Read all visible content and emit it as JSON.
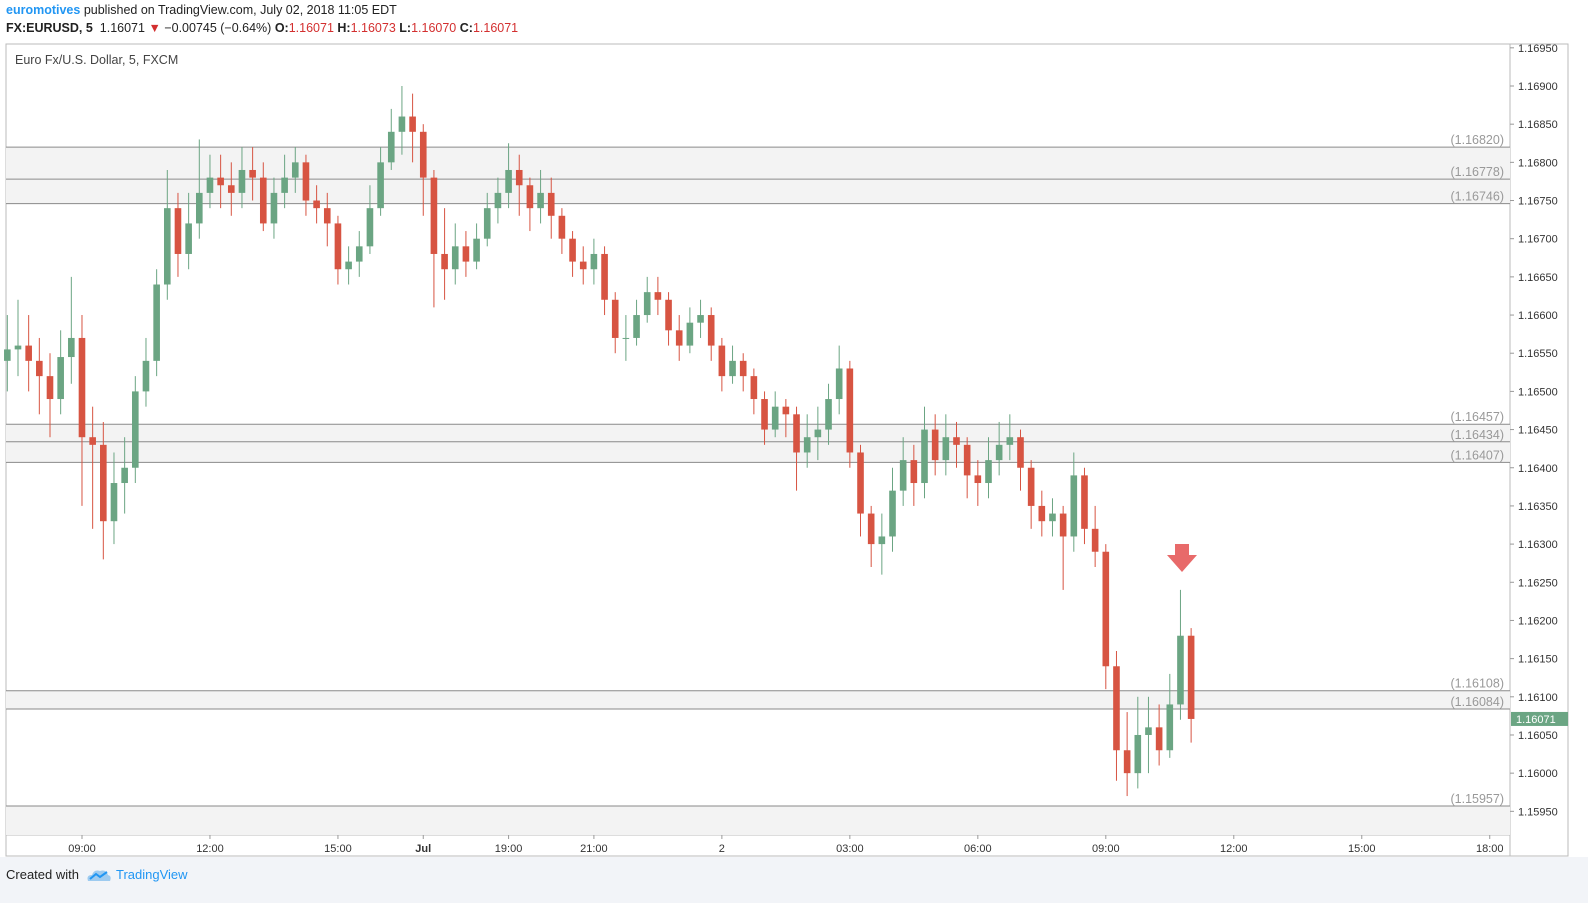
{
  "header": {
    "user": "euromotives",
    "published": "published on TradingView.com, July 02, 2018 11:05 EDT",
    "symbol": "FX:EURUSD, 5",
    "last": "1.16071",
    "change": "−0.00745 (−0.64%)",
    "o_label": "O:",
    "o": "1.16071",
    "h_label": "H:",
    "h": "1.16073",
    "l_label": "L:",
    "l": "1.16070",
    "c_label": "C:",
    "c": "1.16071"
  },
  "footer": {
    "created": "Created with",
    "brand": "TradingView"
  },
  "chart_data": {
    "type": "candlestick",
    "title": "Euro Fx/U.S. Dollar, 5, FXCM",
    "up_color": "#6ba583",
    "down_color": "#d75442",
    "open": [
      1.1654,
      1.16555,
      1.1656,
      1.1654,
      1.1652,
      1.1649,
      1.16545,
      1.1657,
      1.1644,
      1.1643,
      1.1633,
      1.1638,
      1.164,
      1.165,
      1.1654,
      1.1664,
      1.1674,
      1.1668,
      1.1672,
      1.1676,
      1.1678,
      1.1677,
      1.1676,
      1.1679,
      1.1678,
      1.1672,
      1.1676,
      1.1678,
      1.168,
      1.1675,
      1.1674,
      1.1672,
      1.1666,
      1.1667,
      1.1669,
      1.1674,
      1.168,
      1.1684,
      1.1686,
      1.1684,
      1.1678,
      1.1668,
      1.1666,
      1.1669,
      1.1667,
      1.167,
      1.1674,
      1.1676,
      1.1679,
      1.1677,
      1.1674,
      1.1676,
      1.1673,
      1.167,
      1.1667,
      1.1666,
      1.1668,
      1.1662,
      1.1657,
      1.1657,
      1.166,
      1.1663,
      1.1662,
      1.1658,
      1.1656,
      1.1659,
      1.166,
      1.1656,
      1.1652,
      1.1654,
      1.1652,
      1.1649,
      1.1645,
      1.1648,
      1.1647,
      1.1642,
      1.1644,
      1.1645,
      1.1649,
      1.1653,
      1.1642,
      1.1634,
      1.163,
      1.1631,
      1.1637,
      1.1641,
      1.1638,
      1.1645,
      1.1641,
      1.1644,
      1.1643,
      1.1639,
      1.1638,
      1.1641,
      1.1643,
      1.1644,
      1.164,
      1.1635,
      1.1633,
      1.1634,
      1.1631,
      1.1639,
      1.1632,
      1.1629,
      1.1614,
      1.1603,
      1.16,
      1.1605,
      1.1606,
      1.1603,
      1.1609,
      1.1618
    ],
    "high": [
      1.166,
      1.1662,
      1.166,
      1.1657,
      1.1655,
      1.1658,
      1.1665,
      1.166,
      1.1648,
      1.1646,
      1.1642,
      1.1644,
      1.1652,
      1.1657,
      1.1666,
      1.1679,
      1.1676,
      1.1676,
      1.1683,
      1.1681,
      1.1681,
      1.168,
      1.1682,
      1.1682,
      1.168,
      1.1678,
      1.1681,
      1.1682,
      1.1681,
      1.1677,
      1.1676,
      1.1673,
      1.1669,
      1.1671,
      1.1677,
      1.1682,
      1.1687,
      1.169,
      1.1689,
      1.1685,
      1.1679,
      1.1674,
      1.1672,
      1.1671,
      1.1672,
      1.1676,
      1.1678,
      1.16825,
      1.1681,
      1.1678,
      1.1679,
      1.1678,
      1.1674,
      1.1671,
      1.1669,
      1.167,
      1.1669,
      1.1663,
      1.166,
      1.1662,
      1.1665,
      1.1665,
      1.1663,
      1.166,
      1.1661,
      1.1662,
      1.1661,
      1.1657,
      1.1656,
      1.1655,
      1.1653,
      1.165,
      1.165,
      1.1649,
      1.1648,
      1.1647,
      1.1648,
      1.1651,
      1.1656,
      1.1654,
      1.1643,
      1.1635,
      1.1634,
      1.164,
      1.1644,
      1.1643,
      1.1648,
      1.1647,
      1.1647,
      1.1646,
      1.1644,
      1.1641,
      1.1644,
      1.1646,
      1.1647,
      1.1645,
      1.1641,
      1.1637,
      1.1636,
      1.1635,
      1.1642,
      1.164,
      1.1635,
      1.163,
      1.1616,
      1.1608,
      1.161,
      1.161,
      1.1609,
      1.1613,
      1.1624,
      1.1619
    ],
    "low": [
      1.165,
      1.1652,
      1.165,
      1.1647,
      1.1644,
      1.1647,
      1.1651,
      1.1635,
      1.1632,
      1.1628,
      1.163,
      1.1634,
      1.1638,
      1.1648,
      1.1652,
      1.1662,
      1.1665,
      1.1666,
      1.167,
      1.1674,
      1.1674,
      1.1673,
      1.1674,
      1.1675,
      1.1671,
      1.167,
      1.1674,
      1.1676,
      1.1673,
      1.1672,
      1.1669,
      1.1664,
      1.1664,
      1.1665,
      1.1668,
      1.1673,
      1.1679,
      1.1681,
      1.168,
      1.1673,
      1.1661,
      1.1662,
      1.1664,
      1.1665,
      1.1666,
      1.1669,
      1.1672,
      1.1674,
      1.1673,
      1.1671,
      1.1672,
      1.167,
      1.1668,
      1.1665,
      1.1664,
      1.1664,
      1.166,
      1.1655,
      1.1654,
      1.1656,
      1.1659,
      1.166,
      1.1656,
      1.1654,
      1.1655,
      1.1657,
      1.1654,
      1.165,
      1.1651,
      1.165,
      1.1647,
      1.1643,
      1.1644,
      1.1644,
      1.1637,
      1.164,
      1.1641,
      1.1643,
      1.1647,
      1.164,
      1.1631,
      1.1627,
      1.1626,
      1.1629,
      1.1635,
      1.1635,
      1.1636,
      1.1639,
      1.1639,
      1.164,
      1.1636,
      1.1635,
      1.1636,
      1.1639,
      1.1641,
      1.1637,
      1.1632,
      1.1631,
      1.1631,
      1.1624,
      1.1629,
      1.163,
      1.1627,
      1.1611,
      1.1599,
      1.1597,
      1.1598,
      1.16,
      1.1601,
      1.1602,
      1.1607,
      1.1604
    ],
    "close": [
      1.16555,
      1.1656,
      1.1654,
      1.1652,
      1.1649,
      1.16545,
      1.1657,
      1.1644,
      1.1643,
      1.1633,
      1.1638,
      1.164,
      1.165,
      1.1654,
      1.1664,
      1.1674,
      1.1668,
      1.1672,
      1.1676,
      1.1678,
      1.1677,
      1.1676,
      1.1679,
      1.1678,
      1.1672,
      1.1676,
      1.1678,
      1.168,
      1.1675,
      1.1674,
      1.1672,
      1.1666,
      1.1667,
      1.1669,
      1.1674,
      1.168,
      1.1684,
      1.1686,
      1.1684,
      1.1678,
      1.1668,
      1.1666,
      1.1669,
      1.1667,
      1.167,
      1.1674,
      1.1676,
      1.1679,
      1.1677,
      1.1674,
      1.1676,
      1.1673,
      1.167,
      1.1667,
      1.1666,
      1.1668,
      1.1662,
      1.1657,
      1.1657,
      1.166,
      1.1663,
      1.1662,
      1.1658,
      1.1656,
      1.1659,
      1.166,
      1.1656,
      1.1652,
      1.1654,
      1.1652,
      1.1649,
      1.1645,
      1.1648,
      1.1647,
      1.1642,
      1.1644,
      1.1645,
      1.1649,
      1.1653,
      1.1642,
      1.1634,
      1.163,
      1.1631,
      1.1637,
      1.1641,
      1.1638,
      1.1645,
      1.1641,
      1.1644,
      1.1643,
      1.1639,
      1.1638,
      1.1641,
      1.1643,
      1.1644,
      1.164,
      1.1635,
      1.1633,
      1.1634,
      1.1631,
      1.1639,
      1.1632,
      1.1629,
      1.1614,
      1.1603,
      1.16,
      1.1605,
      1.1606,
      1.1603,
      1.1609,
      1.1618,
      1.16071
    ],
    "last_color": "#6ba583",
    "levels": [
      {
        "value": 1.1682,
        "label": "(1.16820)"
      },
      {
        "value": 1.16778,
        "label": "(1.16778)"
      },
      {
        "value": 1.16746,
        "label": "(1.16746)"
      },
      {
        "value": 1.16457,
        "label": "(1.16457)"
      },
      {
        "value": 1.16434,
        "label": "(1.16434)"
      },
      {
        "value": 1.16407,
        "label": "(1.16407)"
      },
      {
        "value": 1.16108,
        "label": "(1.16108)"
      },
      {
        "value": 1.16084,
        "label": "(1.16084)"
      },
      {
        "value": 1.15957,
        "label": "(1.15957)"
      }
    ],
    "xlim": [
      -0.125,
      140.9
    ],
    "xticks": [
      {
        "value": 7,
        "label": "09:00"
      },
      {
        "value": 19,
        "label": "12:00"
      },
      {
        "value": 31,
        "label": "15:00"
      },
      {
        "value": 39,
        "label": "Jul"
      },
      {
        "value": 47,
        "label": "19:00"
      },
      {
        "value": 55,
        "label": "21:00"
      },
      {
        "value": 67,
        "label": "2"
      },
      {
        "value": 79,
        "label": "03:00"
      },
      {
        "value": 91,
        "label": "06:00"
      },
      {
        "value": 103,
        "label": "09:00"
      },
      {
        "value": 115,
        "label": "12:00"
      },
      {
        "value": 127,
        "label": "15:00"
      },
      {
        "value": 139,
        "label": "18:00"
      }
    ],
    "ylim": [
      1.15919,
      1.16955
    ],
    "yticks": [
      {
        "value": 1.1695,
        "label": "1.16950"
      },
      {
        "value": 1.169,
        "label": "1.16900"
      },
      {
        "value": 1.1685,
        "label": "1.16850"
      },
      {
        "value": 1.168,
        "label": "1.16800"
      },
      {
        "value": 1.1675,
        "label": "1.16750"
      },
      {
        "value": 1.167,
        "label": "1.16700"
      },
      {
        "value": 1.1665,
        "label": "1.16650"
      },
      {
        "value": 1.166,
        "label": "1.16600"
      },
      {
        "value": 1.1655,
        "label": "1.16550"
      },
      {
        "value": 1.165,
        "label": "1.16500"
      },
      {
        "value": 1.1645,
        "label": "1.16450"
      },
      {
        "value": 1.164,
        "label": "1.16400"
      },
      {
        "value": 1.1635,
        "label": "1.16350"
      },
      {
        "value": 1.163,
        "label": "1.16300"
      },
      {
        "value": 1.1625,
        "label": "1.16250"
      },
      {
        "value": 1.162,
        "label": "1.16200"
      },
      {
        "value": 1.1615,
        "label": "1.16150"
      },
      {
        "value": 1.161,
        "label": "1.16100"
      },
      {
        "value": 1.1605,
        "label": "1.16050"
      },
      {
        "value": 1.16,
        "label": "1.16000"
      },
      {
        "value": 1.1595,
        "label": "1.15950"
      }
    ]
  }
}
